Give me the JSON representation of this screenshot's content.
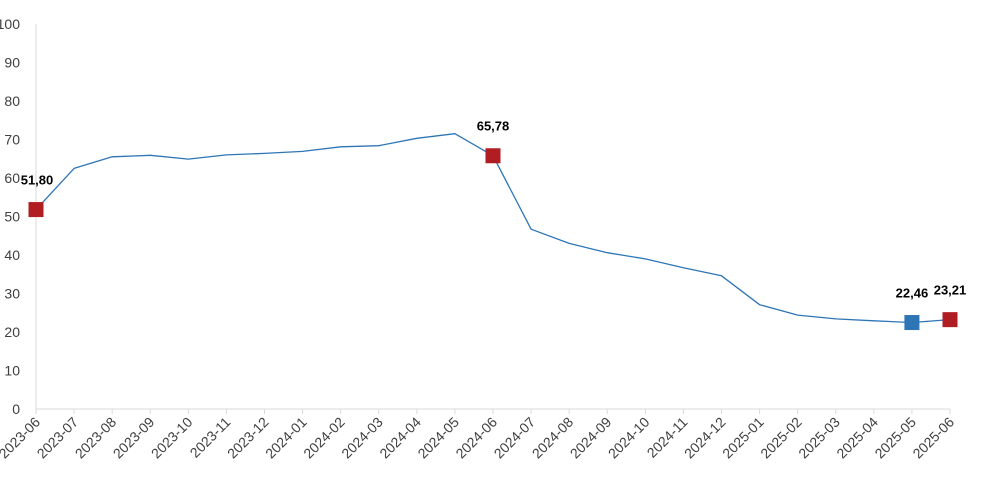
{
  "chart_data": {
    "type": "line",
    "title": "",
    "xlabel": "",
    "ylabel": "",
    "ylim": [
      0,
      100
    ],
    "y_ticks": [
      0,
      10,
      20,
      30,
      40,
      50,
      60,
      70,
      80,
      90,
      100
    ],
    "grid": false,
    "legend": "none",
    "categories": [
      "2023-06",
      "2023-07",
      "2023-08",
      "2023-09",
      "2023-10",
      "2023-11",
      "2023-12",
      "2024-01",
      "2024-02",
      "2024-03",
      "2024-04",
      "2024-05",
      "2024-06",
      "2024-07",
      "2024-08",
      "2024-09",
      "2024-10",
      "2024-11",
      "2024-12",
      "2025-01",
      "2025-02",
      "2025-03",
      "2025-04",
      "2025-05",
      "2025-06"
    ],
    "series": [
      {
        "values": [
          51.8,
          62.5,
          65.5,
          65.9,
          64.9,
          66.0,
          66.4,
          66.9,
          68.1,
          68.4,
          70.3,
          71.5,
          65.78,
          46.7,
          43.0,
          40.6,
          39.0,
          36.7,
          34.6,
          27.1,
          24.4,
          23.4,
          22.9,
          22.46,
          23.21
        ],
        "color": "#2E75B6"
      }
    ],
    "highlight_markers": [
      {
        "index": 0,
        "label": "51,80",
        "color": "#B01E23"
      },
      {
        "index": 12,
        "label": "65,78",
        "color": "#B01E23"
      },
      {
        "index": 23,
        "label": "22,46",
        "color": "#2E75B6"
      },
      {
        "index": 24,
        "label": "23,21",
        "color": "#B01E23"
      }
    ]
  }
}
